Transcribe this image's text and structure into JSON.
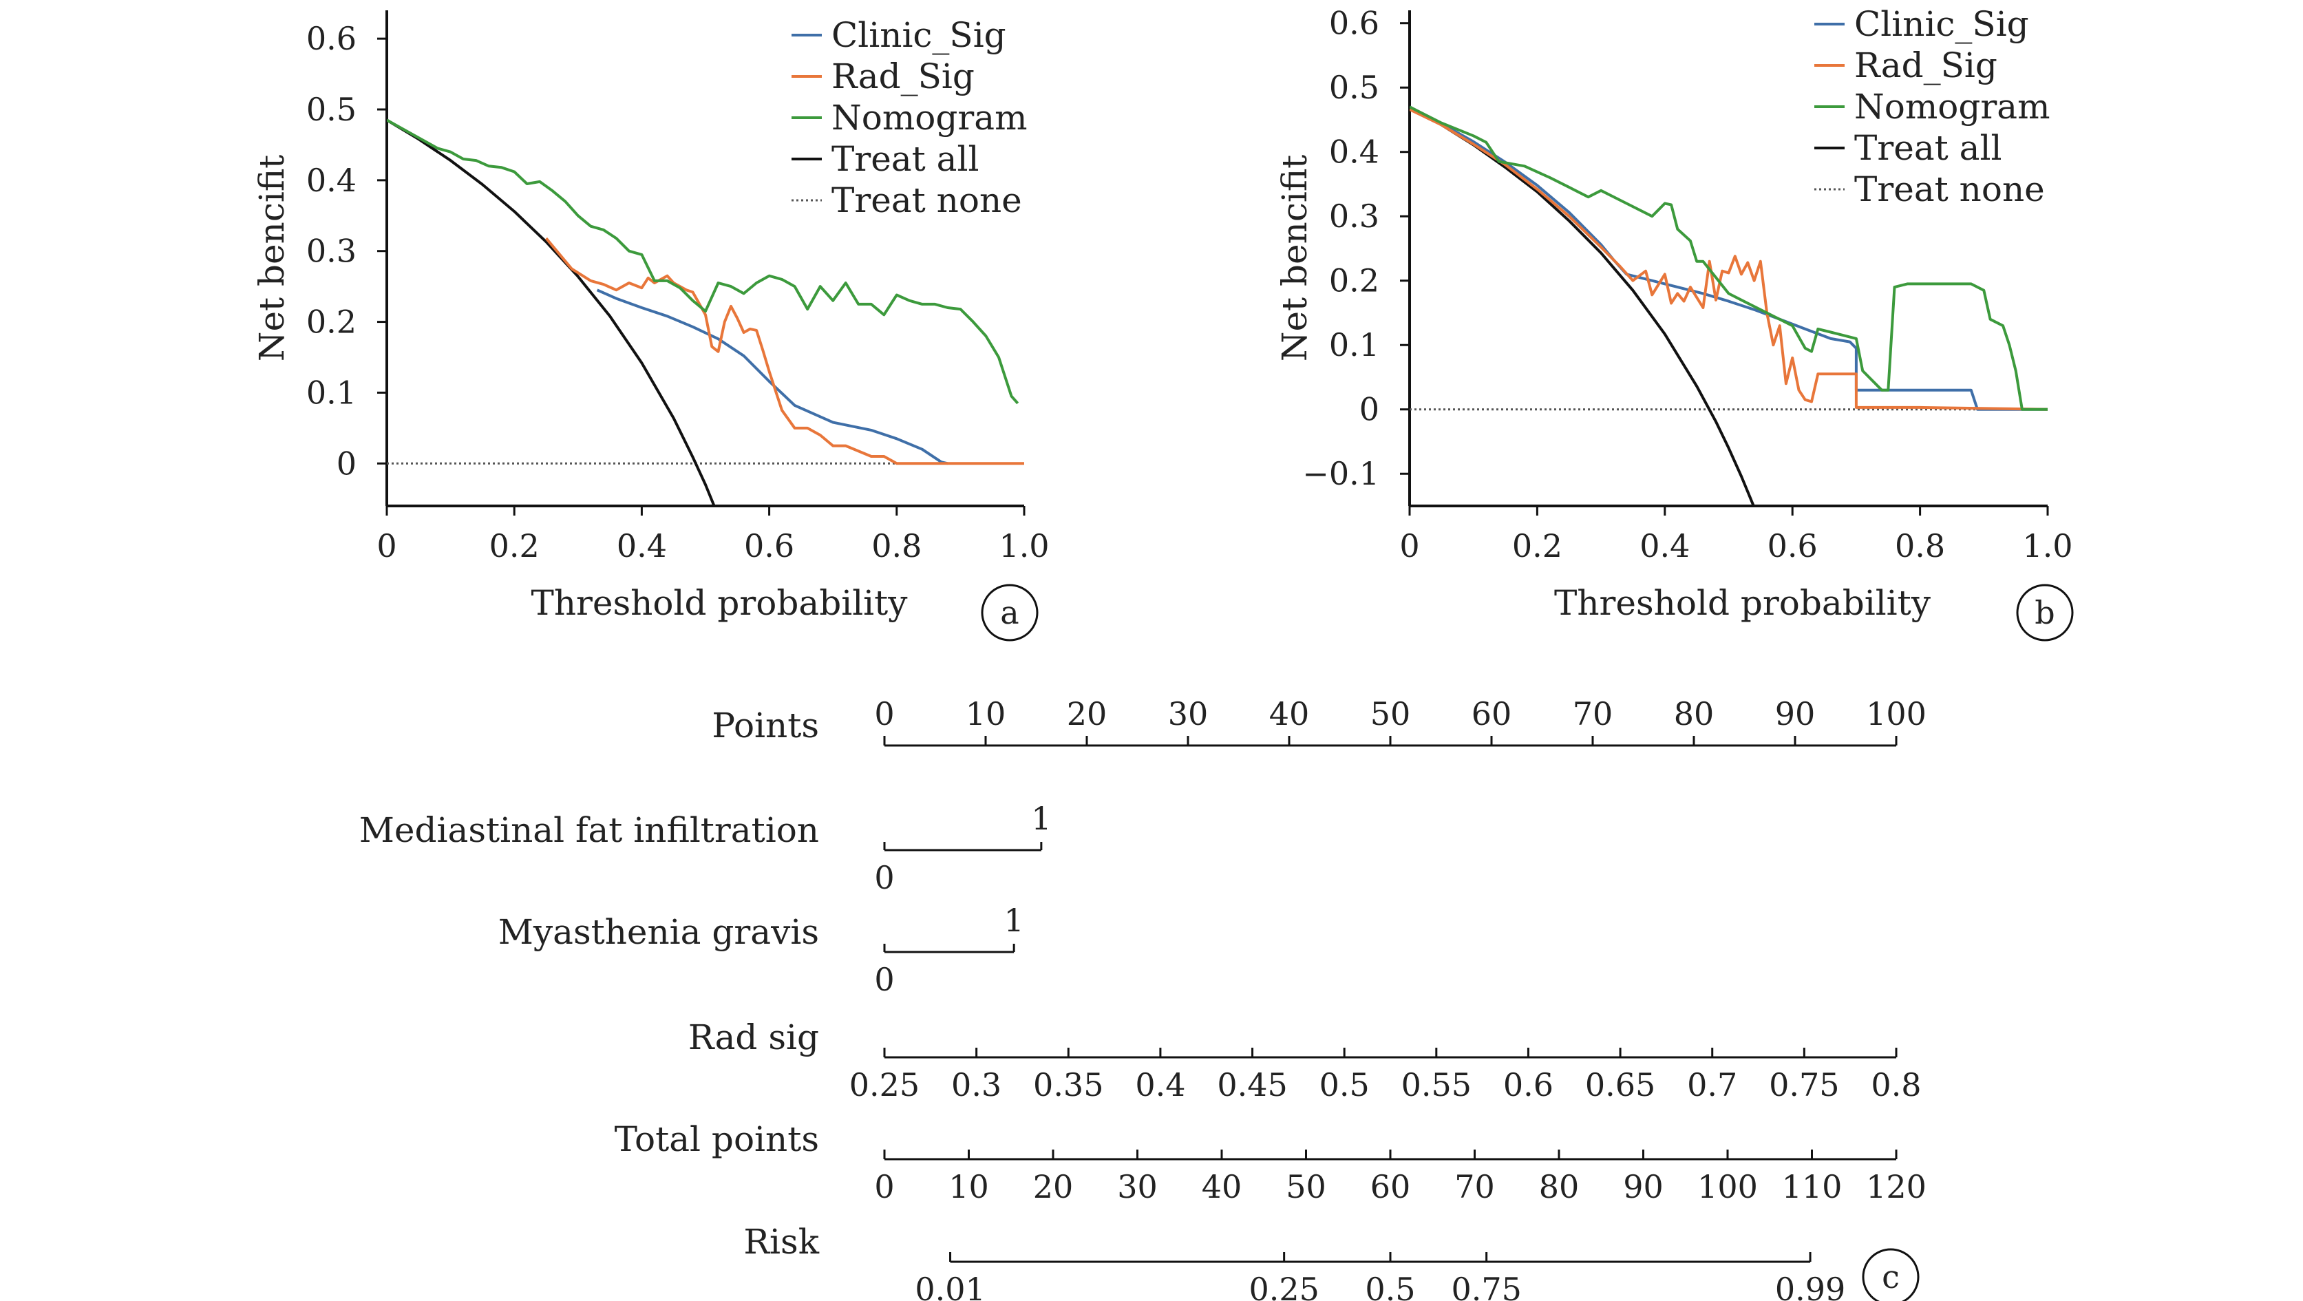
{
  "colors": {
    "clinic": "#3f6fa8",
    "rad": "#e8763a",
    "nomogram": "#3c9a3c",
    "treat_all": "#111111",
    "treat_none": "#555555",
    "axis": "#111111"
  },
  "chart_data": [
    {
      "panel": "a",
      "type": "line",
      "xlabel": "Threshold probability",
      "ylabel": "Net bencifit",
      "xlim": [
        0,
        1.0
      ],
      "ylim": [
        -0.06,
        0.64
      ],
      "xticks": [
        0,
        0.2,
        0.4,
        0.6,
        0.8,
        1.0
      ],
      "xtick_labels": [
        "0",
        "0.2",
        "0.4",
        "0.6",
        "0.8",
        "1.0"
      ],
      "yticks": [
        0,
        0.1,
        0.2,
        0.3,
        0.4,
        0.5,
        0.6
      ],
      "ytick_labels": [
        "0",
        "0.1",
        "0.2",
        "0.3",
        "0.4",
        "0.5",
        "0.6"
      ],
      "legend_position": "top-right",
      "grid": false,
      "series": [
        {
          "name": "Clinic_Sig",
          "color": "clinic",
          "style": "solid",
          "x": [
            0.33,
            0.36,
            0.4,
            0.44,
            0.48,
            0.52,
            0.56,
            0.6,
            0.64,
            0.7,
            0.76,
            0.8,
            0.84,
            0.87,
            0.88
          ],
          "y": [
            0.245,
            0.233,
            0.22,
            0.208,
            0.193,
            0.176,
            0.152,
            0.116,
            0.082,
            0.058,
            0.047,
            0.035,
            0.02,
            0.002,
            0.0
          ]
        },
        {
          "name": "Rad_Sig",
          "color": "rad",
          "style": "solid",
          "x": [
            0.25,
            0.29,
            0.32,
            0.34,
            0.36,
            0.38,
            0.4,
            0.41,
            0.42,
            0.44,
            0.45,
            0.47,
            0.48,
            0.5,
            0.51,
            0.52,
            0.53,
            0.54,
            0.55,
            0.56,
            0.57,
            0.58,
            0.59,
            0.6,
            0.62,
            0.64,
            0.66,
            0.68,
            0.7,
            0.72,
            0.76,
            0.78,
            0.8,
            1.0
          ],
          "y": [
            0.318,
            0.275,
            0.258,
            0.253,
            0.245,
            0.255,
            0.248,
            0.262,
            0.255,
            0.265,
            0.255,
            0.245,
            0.242,
            0.21,
            0.165,
            0.158,
            0.2,
            0.222,
            0.205,
            0.185,
            0.19,
            0.188,
            0.16,
            0.13,
            0.075,
            0.05,
            0.05,
            0.04,
            0.025,
            0.025,
            0.01,
            0.01,
            0.0,
            0.0
          ]
        },
        {
          "name": "Nomogram",
          "color": "nomogram",
          "style": "solid",
          "x": [
            0,
            0.04,
            0.08,
            0.1,
            0.12,
            0.14,
            0.16,
            0.18,
            0.2,
            0.22,
            0.24,
            0.26,
            0.28,
            0.3,
            0.32,
            0.34,
            0.36,
            0.38,
            0.4,
            0.42,
            0.44,
            0.46,
            0.48,
            0.5,
            0.52,
            0.54,
            0.56,
            0.58,
            0.6,
            0.62,
            0.64,
            0.66,
            0.68,
            0.7,
            0.72,
            0.74,
            0.76,
            0.78,
            0.8,
            0.82,
            0.84,
            0.86,
            0.88,
            0.9,
            0.92,
            0.94,
            0.96,
            0.98,
            0.99
          ],
          "y": [
            0.485,
            0.465,
            0.445,
            0.44,
            0.43,
            0.428,
            0.42,
            0.418,
            0.412,
            0.395,
            0.398,
            0.385,
            0.37,
            0.35,
            0.335,
            0.33,
            0.318,
            0.3,
            0.295,
            0.258,
            0.258,
            0.248,
            0.23,
            0.215,
            0.255,
            0.25,
            0.24,
            0.255,
            0.265,
            0.26,
            0.25,
            0.218,
            0.25,
            0.23,
            0.255,
            0.225,
            0.225,
            0.21,
            0.238,
            0.23,
            0.225,
            0.225,
            0.22,
            0.218,
            0.2,
            0.18,
            0.15,
            0.095,
            0.085
          ]
        },
        {
          "name": "Treat all",
          "color": "treat_all",
          "style": "solid",
          "x": [
            0,
            0.05,
            0.1,
            0.15,
            0.2,
            0.25,
            0.3,
            0.35,
            0.4,
            0.45,
            0.48,
            0.5,
            0.52
          ],
          "y": [
            0.485,
            0.458,
            0.428,
            0.394,
            0.356,
            0.313,
            0.264,
            0.208,
            0.142,
            0.064,
            0.009,
            -0.03,
            -0.074
          ]
        },
        {
          "name": "Treat none",
          "color": "treat_none",
          "style": "dotted",
          "x": [
            0,
            1.0
          ],
          "y": [
            0,
            0
          ]
        }
      ],
      "panel_label": "a"
    },
    {
      "panel": "b",
      "type": "line",
      "xlabel": "Threshold probability",
      "ylabel": "Net bencifit",
      "xlim": [
        0,
        1.0
      ],
      "ylim": [
        -0.15,
        0.62
      ],
      "xticks": [
        0,
        0.2,
        0.4,
        0.6,
        0.8,
        1.0
      ],
      "xtick_labels": [
        "0",
        "0.2",
        "0.4",
        "0.6",
        "0.8",
        "1.0"
      ],
      "yticks": [
        -0.1,
        0,
        0.1,
        0.2,
        0.3,
        0.4,
        0.5,
        0.6
      ],
      "ytick_labels": [
        "−0.1",
        "0",
        "0.1",
        "0.2",
        "0.3",
        "0.4",
        "0.5",
        "0.6"
      ],
      "legend_position": "top-right",
      "grid": false,
      "series": [
        {
          "name": "Clinic_Sig",
          "color": "clinic",
          "style": "solid",
          "x": [
            0,
            0.05,
            0.1,
            0.15,
            0.2,
            0.25,
            0.3,
            0.32,
            0.34,
            0.38,
            0.42,
            0.46,
            0.5,
            0.54,
            0.58,
            0.62,
            0.66,
            0.69,
            0.7,
            0.7,
            0.75,
            0.88,
            0.89,
            1.0
          ],
          "y": [
            0.47,
            0.444,
            0.416,
            0.384,
            0.348,
            0.306,
            0.256,
            0.232,
            0.21,
            0.2,
            0.19,
            0.18,
            0.168,
            0.155,
            0.14,
            0.125,
            0.11,
            0.105,
            0.095,
            0.03,
            0.03,
            0.03,
            0.0,
            0.0
          ]
        },
        {
          "name": "Rad_Sig",
          "color": "rad",
          "style": "solid",
          "x": [
            0,
            0.05,
            0.1,
            0.15,
            0.2,
            0.25,
            0.3,
            0.33,
            0.35,
            0.37,
            0.38,
            0.4,
            0.41,
            0.42,
            0.43,
            0.44,
            0.46,
            0.47,
            0.48,
            0.49,
            0.5,
            0.51,
            0.52,
            0.53,
            0.54,
            0.55,
            0.56,
            0.57,
            0.58,
            0.59,
            0.6,
            0.61,
            0.62,
            0.63,
            0.64,
            0.66,
            0.7,
            0.7,
            0.8,
            1.0
          ],
          "y": [
            0.466,
            0.442,
            0.412,
            0.38,
            0.342,
            0.3,
            0.252,
            0.222,
            0.2,
            0.215,
            0.178,
            0.21,
            0.165,
            0.18,
            0.168,
            0.19,
            0.158,
            0.23,
            0.17,
            0.215,
            0.212,
            0.238,
            0.21,
            0.228,
            0.2,
            0.23,
            0.15,
            0.1,
            0.13,
            0.04,
            0.08,
            0.03,
            0.015,
            0.012,
            0.055,
            0.055,
            0.055,
            0.003,
            0.003,
            0.0
          ]
        },
        {
          "name": "Nomogram",
          "color": "nomogram",
          "style": "solid",
          "x": [
            0,
            0.05,
            0.1,
            0.12,
            0.14,
            0.18,
            0.22,
            0.25,
            0.28,
            0.3,
            0.34,
            0.38,
            0.4,
            0.41,
            0.42,
            0.44,
            0.45,
            0.46,
            0.48,
            0.5,
            0.52,
            0.56,
            0.6,
            0.62,
            0.63,
            0.64,
            0.66,
            0.7,
            0.71,
            0.74,
            0.75,
            0.76,
            0.78,
            0.8,
            0.84,
            0.86,
            0.88,
            0.9,
            0.91,
            0.93,
            0.94,
            0.95,
            0.96,
            1.0
          ],
          "y": [
            0.47,
            0.445,
            0.425,
            0.415,
            0.385,
            0.378,
            0.36,
            0.345,
            0.33,
            0.34,
            0.32,
            0.3,
            0.32,
            0.318,
            0.28,
            0.262,
            0.23,
            0.23,
            0.205,
            0.18,
            0.17,
            0.15,
            0.13,
            0.095,
            0.09,
            0.125,
            0.12,
            0.11,
            0.06,
            0.03,
            0.03,
            0.19,
            0.195,
            0.195,
            0.195,
            0.195,
            0.195,
            0.185,
            0.14,
            0.13,
            0.1,
            0.06,
            0.0,
            0.0
          ]
        },
        {
          "name": "Treat all",
          "color": "treat_all",
          "style": "solid",
          "x": [
            0,
            0.05,
            0.1,
            0.15,
            0.2,
            0.25,
            0.3,
            0.35,
            0.4,
            0.45,
            0.48,
            0.5,
            0.52,
            0.54
          ],
          "y": [
            0.47,
            0.442,
            0.411,
            0.376,
            0.338,
            0.293,
            0.243,
            0.185,
            0.117,
            0.036,
            -0.019,
            -0.06,
            -0.104,
            -0.152
          ]
        },
        {
          "name": "Treat none",
          "color": "treat_none",
          "style": "dotted",
          "x": [
            0,
            1.0
          ],
          "y": [
            0,
            0
          ]
        }
      ],
      "panel_label": "b"
    },
    {
      "panel": "c",
      "type": "nomogram",
      "rows": [
        {
          "label": "Points",
          "start_points": 0,
          "end_points": 100,
          "ticks": [
            0,
            10,
            20,
            30,
            40,
            50,
            60,
            70,
            80,
            90,
            100
          ],
          "tick_labels": [
            "0",
            "10",
            "20",
            "30",
            "40",
            "50",
            "60",
            "70",
            "80",
            "90",
            "100"
          ],
          "labels_above": true
        },
        {
          "label": "Mediastinal fat  infiltration",
          "start_points": 0,
          "end_points": 15.5,
          "end_labels": [
            "0",
            "1"
          ],
          "binary": true
        },
        {
          "label": "Myasthenia gravis",
          "start_points": 0,
          "end_points": 12.8,
          "end_labels": [
            "0",
            "1"
          ],
          "binary": true
        },
        {
          "label": "Rad sig",
          "start_points": 0,
          "end_points": 100,
          "ticks": [
            0.25,
            0.3,
            0.35,
            0.4,
            0.45,
            0.5,
            0.55,
            0.6,
            0.65,
            0.7,
            0.75,
            0.8
          ],
          "tick_labels": [
            "0.25",
            "0.3",
            "0.35",
            "0.4",
            "0.45",
            "0.5",
            "0.55",
            "0.6",
            "0.65",
            "0.7",
            "0.75",
            "0.8"
          ],
          "tick_range": [
            0.25,
            0.8
          ]
        },
        {
          "label": "Total points",
          "start_points": 0,
          "end_points": 100,
          "ticks": [
            0,
            10,
            20,
            30,
            40,
            50,
            60,
            70,
            80,
            90,
            100,
            110,
            120
          ],
          "tick_labels": [
            "0",
            "10",
            "20",
            "30",
            "40",
            "50",
            "60",
            "70",
            "80",
            "90",
            "100",
            "110",
            "120"
          ],
          "tick_range": [
            0,
            120
          ]
        },
        {
          "label": "Risk",
          "total_axis": true,
          "ticks": [
            6.5,
            39.5,
            50.0,
            59.5,
            91.5
          ],
          "tick_labels": [
            "0.01",
            "0.25",
            "0.5",
            "0.75",
            "0.99"
          ],
          "tick_range": [
            0,
            120
          ]
        }
      ],
      "panel_label": "c"
    }
  ]
}
